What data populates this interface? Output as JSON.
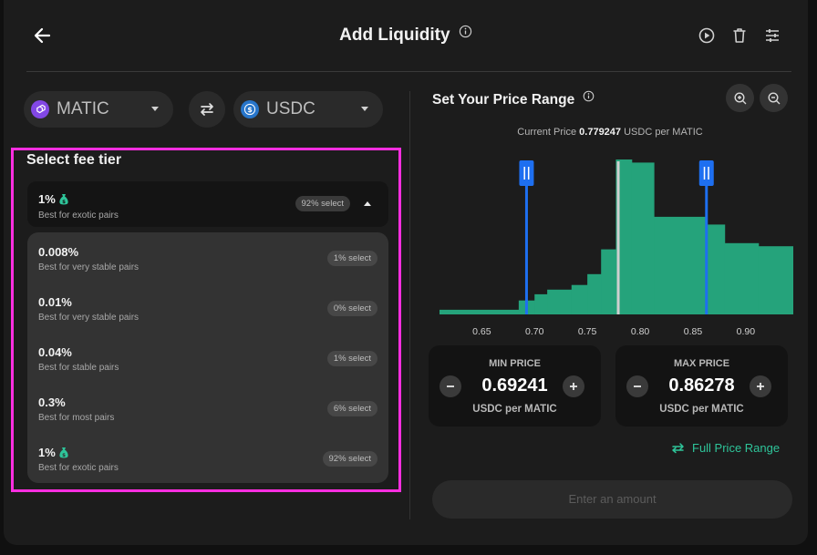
{
  "header": {
    "title": "Add Liquidity"
  },
  "tokens": {
    "from": {
      "symbol": "MATIC",
      "color": "#8247e5"
    },
    "to": {
      "symbol": "USDC",
      "color": "#2775ca"
    }
  },
  "fee": {
    "title": "Select fee tier",
    "selected": {
      "pct": "1%",
      "desc": "Best for exotic pairs",
      "badge": "92% select"
    },
    "options": [
      {
        "pct": "0.008%",
        "desc": "Best for very stable pairs",
        "badge": "1% select"
      },
      {
        "pct": "0.01%",
        "desc": "Best for very stable pairs",
        "badge": "0% select"
      },
      {
        "pct": "0.04%",
        "desc": "Best for stable pairs",
        "badge": "1% select"
      },
      {
        "pct": "0.3%",
        "desc": "Best for most pairs",
        "badge": "6% select"
      },
      {
        "pct": "1%",
        "desc": "Best for exotic pairs",
        "badge": "92% select"
      }
    ]
  },
  "range": {
    "title": "Set Your Price Range",
    "current_price_label": "Current Price",
    "current_price_value": "0.779247",
    "current_price_unit": "USDC per MATIC",
    "min": {
      "label": "MIN PRICE",
      "value": "0.69241",
      "unit": "USDC per MATIC"
    },
    "max": {
      "label": "MAX PRICE",
      "value": "0.86278",
      "unit": "USDC per MATIC"
    },
    "full_range_label": "Full Price Range",
    "enter_label": "Enter an amount"
  },
  "chart_data": {
    "type": "bar",
    "xlim": [
      0.61,
      0.945
    ],
    "x_ticks": [
      "0.65",
      "0.70",
      "0.75",
      "0.80",
      "0.85",
      "0.90"
    ],
    "tick_values": [
      0.65,
      0.7,
      0.75,
      0.8,
      0.85,
      0.9
    ],
    "bins": [
      {
        "from": 0.61,
        "to": 0.685,
        "value": 0.03
      },
      {
        "from": 0.685,
        "to": 0.7,
        "value": 0.09
      },
      {
        "from": 0.7,
        "to": 0.712,
        "value": 0.13
      },
      {
        "from": 0.712,
        "to": 0.735,
        "value": 0.16
      },
      {
        "from": 0.735,
        "to": 0.75,
        "value": 0.19
      },
      {
        "from": 0.75,
        "to": 0.763,
        "value": 0.26
      },
      {
        "from": 0.763,
        "to": 0.777,
        "value": 0.42
      },
      {
        "from": 0.777,
        "to": 0.792,
        "value": 1.0
      },
      {
        "from": 0.792,
        "to": 0.813,
        "value": 0.98
      },
      {
        "from": 0.813,
        "to": 0.863,
        "value": 0.63
      },
      {
        "from": 0.863,
        "to": 0.88,
        "value": 0.58
      },
      {
        "from": 0.88,
        "to": 0.912,
        "value": 0.46
      },
      {
        "from": 0.912,
        "to": 0.945,
        "value": 0.44
      }
    ],
    "current_price": 0.779247,
    "min_price": 0.69241,
    "max_price": 0.86278,
    "bar_color": "#25a37b",
    "handle_color": "#1e6ff0",
    "current_line_color": "#cfcfcf"
  }
}
